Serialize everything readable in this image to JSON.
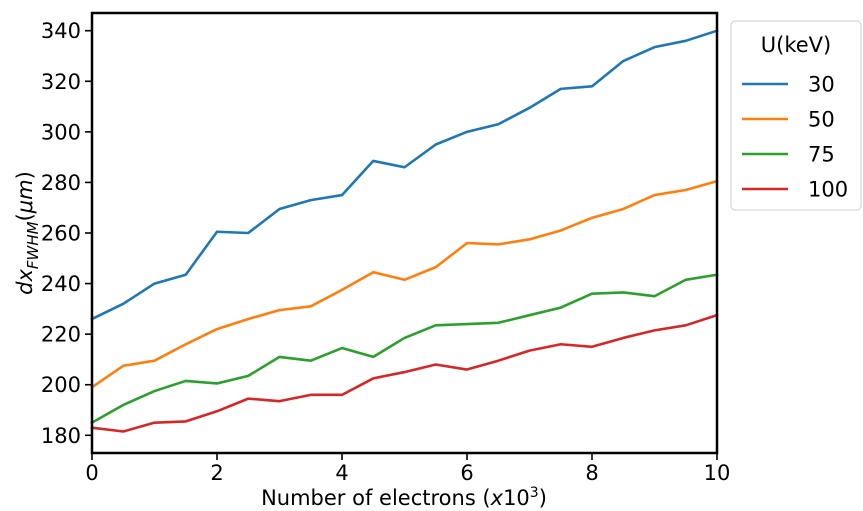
{
  "chart_data": {
    "type": "line",
    "xlabel": "Number of electrons (x10^3)",
    "ylabel": "dx_FWHM(μm)",
    "xlim": [
      0,
      10
    ],
    "ylim": [
      173,
      347
    ],
    "xticks": [
      "0",
      "2",
      "4",
      "6",
      "8",
      "10"
    ],
    "yticks": [
      "180",
      "200",
      "220",
      "240",
      "260",
      "280",
      "300",
      "320",
      "340"
    ],
    "legend": {
      "title": "U(keV)",
      "placement": "outside-top-right"
    },
    "grid": false,
    "x": [
      0,
      0.5,
      1,
      1.5,
      2,
      2.5,
      3,
      3.5,
      4,
      4.5,
      5,
      5.5,
      6,
      6.5,
      7,
      7.5,
      8,
      8.5,
      9,
      9.5,
      10
    ],
    "series": [
      {
        "name": "30",
        "color": "#1f77b4",
        "values": [
          226,
          232,
          240,
          243.5,
          260.5,
          260,
          269.5,
          273,
          275,
          288.5,
          286,
          295,
          300,
          303,
          309.5,
          317,
          318,
          328,
          333.5,
          336,
          340
        ]
      },
      {
        "name": "50",
        "color": "#ff7f0e",
        "values": [
          199,
          207.5,
          209.5,
          216,
          222,
          226,
          229.5,
          231,
          237.5,
          244.5,
          241.5,
          246.5,
          256,
          255.5,
          257.5,
          261,
          266,
          269.5,
          275,
          277,
          280.5
        ]
      },
      {
        "name": "75",
        "color": "#2ca02c",
        "values": [
          185,
          192,
          197.5,
          201.5,
          200.5,
          203.5,
          211,
          209.5,
          214.5,
          211,
          218.5,
          223.5,
          224,
          224.5,
          227.5,
          230.5,
          236,
          236.5,
          235,
          241.5,
          243.5
        ]
      },
      {
        "name": "100",
        "color": "#d62728",
        "values": [
          183,
          181.5,
          185,
          185.5,
          189.5,
          194.5,
          193.5,
          196,
          196,
          202.5,
          205,
          208,
          206,
          209.5,
          213.5,
          216,
          215,
          218.5,
          221.5,
          223.5,
          227.5
        ]
      }
    ]
  }
}
